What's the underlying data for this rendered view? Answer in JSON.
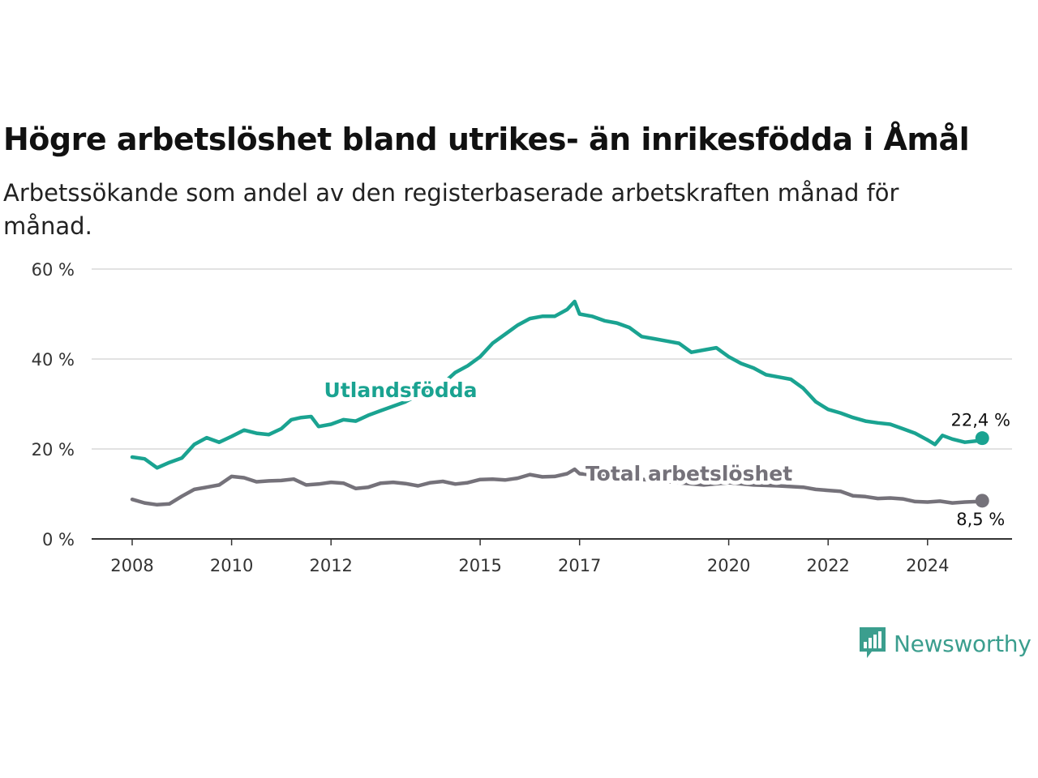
{
  "title": "Högre arbetslöshet bland utrikes- än inrikesfödda i Åmål",
  "subtitle": "Arbetssökande som andel av den registerbaserade arbetskraften månad för månad.",
  "brand": {
    "name": "Newsworthy",
    "icon": "newsworthy-logo-icon",
    "color": "#3b9e8e"
  },
  "chart_data": {
    "type": "line",
    "title": "Högre arbetslöshet bland utrikes- än inrikesfödda i Åmål",
    "xlabel": "",
    "ylabel": "",
    "ylim": [
      0,
      60
    ],
    "yticks": [
      0,
      20,
      40,
      60
    ],
    "ytick_labels": [
      "0 %",
      "20 %",
      "40 %",
      "60 %"
    ],
    "xlim": [
      2008,
      2025.8
    ],
    "xticks": [
      2008,
      2010,
      2012,
      2015,
      2017,
      2020,
      2022,
      2024
    ],
    "xtick_labels": [
      "2008",
      "2010",
      "2012",
      "2015",
      "2017",
      "2020",
      "2022",
      "2024"
    ],
    "grid": "horizontal",
    "legend": "none",
    "series": [
      {
        "name": "Utlandsfödda",
        "color": "#1aa391",
        "end_label": "22,4 %",
        "points": [
          [
            2008.0,
            18.2
          ],
          [
            2008.25,
            17.8
          ],
          [
            2008.5,
            15.8
          ],
          [
            2008.75,
            17.0
          ],
          [
            2009.0,
            18.0
          ],
          [
            2009.25,
            21.0
          ],
          [
            2009.5,
            22.5
          ],
          [
            2009.75,
            21.5
          ],
          [
            2010.0,
            22.8
          ],
          [
            2010.25,
            24.2
          ],
          [
            2010.5,
            23.5
          ],
          [
            2010.75,
            23.2
          ],
          [
            2011.0,
            24.5
          ],
          [
            2011.2,
            26.5
          ],
          [
            2011.4,
            27.0
          ],
          [
            2011.6,
            27.2
          ],
          [
            2011.75,
            25.0
          ],
          [
            2012.0,
            25.5
          ],
          [
            2012.25,
            26.5
          ],
          [
            2012.5,
            26.2
          ],
          [
            2012.75,
            27.5
          ],
          [
            2013.0,
            28.5
          ],
          [
            2013.25,
            29.5
          ],
          [
            2013.5,
            30.5
          ],
          [
            2013.75,
            32.0
          ],
          [
            2014.0,
            33.5
          ],
          [
            2014.25,
            34.5
          ],
          [
            2014.5,
            37.0
          ],
          [
            2014.75,
            38.5
          ],
          [
            2015.0,
            40.5
          ],
          [
            2015.25,
            43.5
          ],
          [
            2015.5,
            45.5
          ],
          [
            2015.75,
            47.5
          ],
          [
            2016.0,
            49.0
          ],
          [
            2016.25,
            49.5
          ],
          [
            2016.5,
            49.5
          ],
          [
            2016.75,
            51.0
          ],
          [
            2016.9,
            52.8
          ],
          [
            2017.0,
            50.0
          ],
          [
            2017.25,
            49.5
          ],
          [
            2017.5,
            48.5
          ],
          [
            2017.75,
            48.0
          ],
          [
            2018.0,
            47.0
          ],
          [
            2018.25,
            45.0
          ],
          [
            2018.5,
            44.5
          ],
          [
            2018.75,
            44.0
          ],
          [
            2019.0,
            43.5
          ],
          [
            2019.25,
            41.5
          ],
          [
            2019.5,
            42.0
          ],
          [
            2019.75,
            42.5
          ],
          [
            2020.0,
            40.5
          ],
          [
            2020.25,
            39.0
          ],
          [
            2020.5,
            38.0
          ],
          [
            2020.75,
            36.5
          ],
          [
            2021.0,
            36.0
          ],
          [
            2021.25,
            35.5
          ],
          [
            2021.5,
            33.5
          ],
          [
            2021.75,
            30.5
          ],
          [
            2022.0,
            28.8
          ],
          [
            2022.25,
            28.0
          ],
          [
            2022.5,
            27.0
          ],
          [
            2022.75,
            26.2
          ],
          [
            2023.0,
            25.8
          ],
          [
            2023.25,
            25.5
          ],
          [
            2023.5,
            24.5
          ],
          [
            2023.75,
            23.5
          ],
          [
            2024.0,
            22.0
          ],
          [
            2024.15,
            21.0
          ],
          [
            2024.3,
            23.0
          ],
          [
            2024.5,
            22.2
          ],
          [
            2024.75,
            21.5
          ],
          [
            2025.0,
            21.8
          ],
          [
            2025.1,
            22.4
          ]
        ]
      },
      {
        "name": "Total arbetslöshet",
        "color": "#75727a",
        "end_label": "8,5 %",
        "points": [
          [
            2008.0,
            8.8
          ],
          [
            2008.25,
            8.0
          ],
          [
            2008.5,
            7.6
          ],
          [
            2008.75,
            7.8
          ],
          [
            2009.0,
            9.5
          ],
          [
            2009.25,
            11.0
          ],
          [
            2009.5,
            11.5
          ],
          [
            2009.75,
            12.0
          ],
          [
            2010.0,
            13.9
          ],
          [
            2010.25,
            13.6
          ],
          [
            2010.5,
            12.7
          ],
          [
            2010.75,
            12.9
          ],
          [
            2011.0,
            13.0
          ],
          [
            2011.25,
            13.3
          ],
          [
            2011.5,
            12.0
          ],
          [
            2011.75,
            12.2
          ],
          [
            2012.0,
            12.6
          ],
          [
            2012.25,
            12.4
          ],
          [
            2012.5,
            11.2
          ],
          [
            2012.75,
            11.5
          ],
          [
            2013.0,
            12.4
          ],
          [
            2013.25,
            12.6
          ],
          [
            2013.5,
            12.3
          ],
          [
            2013.75,
            11.8
          ],
          [
            2014.0,
            12.5
          ],
          [
            2014.25,
            12.8
          ],
          [
            2014.5,
            12.2
          ],
          [
            2014.75,
            12.5
          ],
          [
            2015.0,
            13.2
          ],
          [
            2015.25,
            13.3
          ],
          [
            2015.5,
            13.1
          ],
          [
            2015.75,
            13.5
          ],
          [
            2016.0,
            14.3
          ],
          [
            2016.25,
            13.8
          ],
          [
            2016.5,
            13.9
          ],
          [
            2016.75,
            14.5
          ],
          [
            2016.9,
            15.5
          ],
          [
            2017.0,
            14.5
          ],
          [
            2017.5,
            14.0
          ],
          [
            2018.0,
            13.5
          ],
          [
            2018.5,
            13.0
          ],
          [
            2019.0,
            12.5
          ],
          [
            2019.5,
            12.0
          ],
          [
            2020.0,
            12.5
          ],
          [
            2020.5,
            12.0
          ],
          [
            2021.0,
            11.8
          ],
          [
            2021.5,
            11.5
          ],
          [
            2021.75,
            11.0
          ],
          [
            2022.0,
            10.8
          ],
          [
            2022.25,
            10.6
          ],
          [
            2022.5,
            9.6
          ],
          [
            2022.75,
            9.4
          ],
          [
            2023.0,
            9.0
          ],
          [
            2023.25,
            9.1
          ],
          [
            2023.5,
            8.9
          ],
          [
            2023.75,
            8.3
          ],
          [
            2024.0,
            8.2
          ],
          [
            2024.25,
            8.4
          ],
          [
            2024.5,
            8.0
          ],
          [
            2024.75,
            8.2
          ],
          [
            2025.0,
            8.3
          ],
          [
            2025.1,
            8.5
          ]
        ]
      }
    ],
    "annotations": [
      {
        "text": "Utlandsfödda",
        "series": "Utlandsfödda",
        "x": 2013.4,
        "y": 31.5
      },
      {
        "text": "Total arbetslöshet",
        "series": "Total arbetslöshet",
        "x": 2019.2,
        "y": 13.0
      }
    ]
  }
}
